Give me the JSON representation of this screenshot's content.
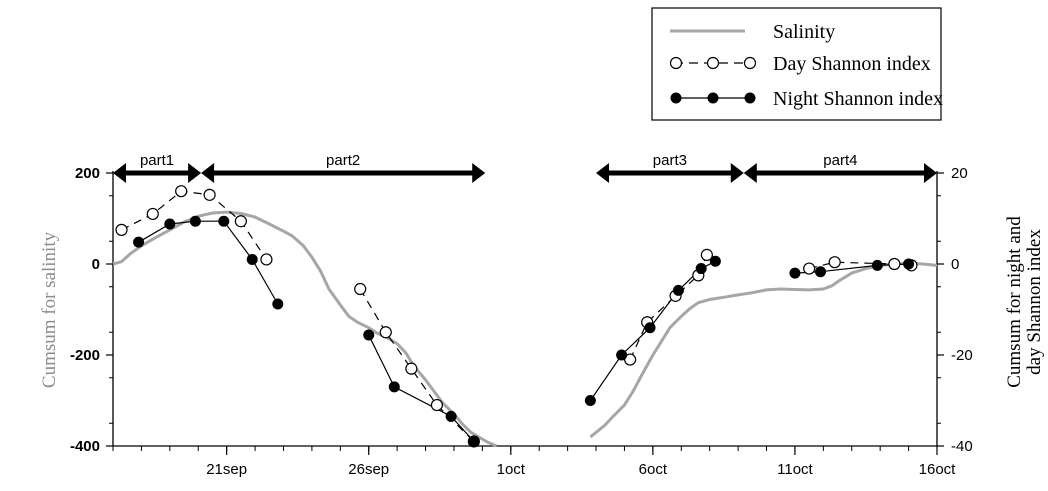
{
  "chart_data": {
    "type": "line",
    "title": "",
    "xlabel": "",
    "ylabel": "Cumsum for salinity",
    "ylabel_right": [
      "Cumsum for night and",
      "day Shannon index"
    ],
    "x_ticks": [
      {
        "label": "21sep",
        "day": 21
      },
      {
        "label": "26sep",
        "day": 26
      },
      {
        "label": "1oct",
        "day": 31
      },
      {
        "label": "6oct",
        "day": 36
      },
      {
        "label": "11oct",
        "day": 41
      },
      {
        "label": "16oct",
        "day": 46
      }
    ],
    "xlim": [
      17,
      46
    ],
    "y_left": {
      "lim": [
        -400,
        200
      ],
      "ticks": [
        "200",
        "0",
        "-200",
        "-400"
      ],
      "tick_values": [
        200,
        0,
        -200,
        -400
      ]
    },
    "y_right": {
      "lim": [
        -40,
        20
      ],
      "ticks": [
        "20",
        "0",
        "-20",
        "-40"
      ],
      "tick_values": [
        20,
        0,
        -20,
        -40
      ]
    },
    "grid": false,
    "legend_position": "top-right",
    "legend": [
      {
        "label": "Salinity",
        "style": "gray-line"
      },
      {
        "label": "Day Shannon index",
        "style": "open-circle-dashed"
      },
      {
        "label": "Night Shannon index",
        "style": "filled-circle-solid"
      }
    ],
    "parts": [
      {
        "label": "part1",
        "start": 17,
        "end": 20.1
      },
      {
        "label": "part2",
        "start": 20.1,
        "end": 30.1
      },
      {
        "label": "part3",
        "start": 34,
        "end": 39.2
      },
      {
        "label": "part4",
        "start": 39.2,
        "end": 46
      }
    ],
    "series": [
      {
        "name": "Salinity",
        "axis": "left",
        "color": "#a6a6a6",
        "segments": [
          [
            [
              17,
              0
            ],
            [
              17.3,
              5
            ],
            [
              17.6,
              22
            ],
            [
              18,
              40
            ],
            [
              18.5,
              58
            ],
            [
              19,
              75
            ],
            [
              19.5,
              92
            ],
            [
              20,
              105
            ],
            [
              20.5,
              112
            ],
            [
              21,
              114
            ],
            [
              21.5,
              111
            ],
            [
              22,
              103
            ],
            [
              22.5,
              88
            ],
            [
              23,
              72
            ],
            [
              23.3,
              62
            ],
            [
              23.7,
              40
            ],
            [
              24,
              15
            ],
            [
              24.3,
              -15
            ],
            [
              24.6,
              -55
            ],
            [
              25,
              -90
            ],
            [
              25.3,
              -115
            ],
            [
              25.6,
              -128
            ],
            [
              26,
              -140
            ],
            [
              26.3,
              -152
            ],
            [
              26.6,
              -160
            ],
            [
              27,
              -175
            ],
            [
              27.3,
              -195
            ],
            [
              27.6,
              -225
            ],
            [
              28,
              -255
            ],
            [
              28.3,
              -280
            ],
            [
              28.6,
              -305
            ],
            [
              29,
              -330
            ],
            [
              29.3,
              -352
            ],
            [
              29.6,
              -370
            ],
            [
              30,
              -385
            ],
            [
              30.2,
              -392
            ],
            [
              30.5,
              -400
            ]
          ],
          [
            [
              33.8,
              -380
            ],
            [
              34,
              -370
            ],
            [
              34.3,
              -355
            ],
            [
              34.6,
              -335
            ],
            [
              35,
              -310
            ],
            [
              35.3,
              -280
            ],
            [
              35.6,
              -245
            ],
            [
              36,
              -200
            ],
            [
              36.3,
              -170
            ],
            [
              36.6,
              -140
            ],
            [
              37,
              -115
            ],
            [
              37.3,
              -98
            ],
            [
              37.6,
              -85
            ],
            [
              38,
              -78
            ],
            [
              38.3,
              -75
            ],
            [
              38.6,
              -72
            ],
            [
              39,
              -68
            ],
            [
              39.5,
              -63
            ],
            [
              40,
              -57
            ],
            [
              40.5,
              -55
            ],
            [
              41,
              -56
            ],
            [
              41.5,
              -57
            ],
            [
              42,
              -55
            ],
            [
              42.3,
              -48
            ],
            [
              42.6,
              -35
            ],
            [
              43,
              -20
            ],
            [
              43.5,
              -10
            ],
            [
              44,
              -3
            ],
            [
              44.5,
              0
            ],
            [
              45,
              2
            ],
            [
              45.5,
              0
            ],
            [
              46,
              -3
            ]
          ]
        ]
      },
      {
        "name": "Day Shannon index",
        "axis": "right",
        "segments": [
          [
            [
              17.3,
              7.5
            ],
            [
              18.4,
              11
            ],
            [
              19.4,
              16
            ],
            [
              20.4,
              15.2
            ],
            [
              21.5,
              9.4
            ],
            [
              22.4,
              1
            ]
          ],
          [
            [
              25.7,
              -5.5
            ],
            [
              26.6,
              -15
            ],
            [
              27.5,
              -23
            ],
            [
              28.4,
              -31
            ],
            [
              29.7,
              -39
            ]
          ],
          [
            [
              35.2,
              -21
            ],
            [
              35.8,
              -12.8
            ],
            [
              36.8,
              -7
            ],
            [
              37.6,
              -2.5
            ],
            [
              37.9,
              2
            ]
          ],
          [
            [
              41.5,
              -1
            ],
            [
              42.4,
              0.4
            ],
            [
              44.5,
              0
            ],
            [
              45.1,
              -0.3
            ]
          ]
        ]
      },
      {
        "name": "Night Shannon index",
        "axis": "right",
        "segments": [
          [
            [
              17.9,
              4.8
            ],
            [
              19,
              8.8
            ],
            [
              19.9,
              9.4
            ],
            [
              20.9,
              9.4
            ],
            [
              21.9,
              1
            ],
            [
              22.8,
              -8.8
            ]
          ],
          [
            [
              26,
              -15.6
            ],
            [
              26.9,
              -27
            ],
            [
              28.9,
              -33.5
            ],
            [
              29.7,
              -39
            ]
          ],
          [
            [
              33.8,
              -30
            ],
            [
              34.9,
              -20
            ],
            [
              35.9,
              -14
            ],
            [
              36.9,
              -5.8
            ],
            [
              37.7,
              -1
            ],
            [
              38.2,
              0.6
            ]
          ],
          [
            [
              41,
              -2
            ],
            [
              41.9,
              -1.7
            ],
            [
              43.9,
              -0.3
            ],
            [
              45,
              0
            ]
          ]
        ]
      }
    ]
  }
}
